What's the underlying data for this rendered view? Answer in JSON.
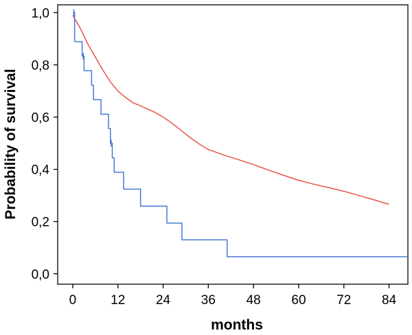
{
  "chart_data": {
    "type": "line",
    "title": "",
    "xlabel": "months",
    "ylabel": "Probability of survival",
    "xlim": [
      -4,
      89
    ],
    "ylim": [
      -0.04,
      1.03
    ],
    "xticks": [
      0,
      12,
      24,
      36,
      48,
      60,
      72,
      84
    ],
    "xtick_labels": [
      "0",
      "12",
      "24",
      "36",
      "48",
      "60",
      "72",
      "84"
    ],
    "yticks": [
      0.0,
      0.2,
      0.4,
      0.6,
      0.8,
      1.0
    ],
    "ytick_labels": [
      "0,0",
      "0,2",
      "0,4",
      "0,6",
      "0,8",
      "1,0"
    ],
    "grid": false,
    "series": [
      {
        "kind": "smooth",
        "color": "#e8524a",
        "points": [
          [
            0,
            0.99
          ],
          [
            2,
            0.94
          ],
          [
            4,
            0.88
          ],
          [
            6,
            0.83
          ],
          [
            8,
            0.78
          ],
          [
            10,
            0.735
          ],
          [
            12,
            0.7
          ],
          [
            14,
            0.675
          ],
          [
            16,
            0.655
          ],
          [
            18,
            0.643
          ],
          [
            20,
            0.63
          ],
          [
            22,
            0.617
          ],
          [
            24,
            0.6
          ],
          [
            26,
            0.58
          ],
          [
            28,
            0.558
          ],
          [
            30,
            0.535
          ],
          [
            32,
            0.513
          ],
          [
            34,
            0.493
          ],
          [
            36,
            0.476
          ],
          [
            40,
            0.455
          ],
          [
            44,
            0.437
          ],
          [
            48,
            0.418
          ],
          [
            52,
            0.397
          ],
          [
            56,
            0.377
          ],
          [
            60,
            0.358
          ],
          [
            64,
            0.343
          ],
          [
            68,
            0.33
          ],
          [
            72,
            0.316
          ],
          [
            76,
            0.3
          ],
          [
            80,
            0.283
          ],
          [
            84,
            0.266
          ]
        ]
      },
      {
        "kind": "step",
        "color": "#4a78d6",
        "points": [
          [
            0,
            1.0
          ],
          [
            0.5,
            0.889
          ],
          [
            2.5,
            0.833
          ],
          [
            3,
            0.778
          ],
          [
            5,
            0.722
          ],
          [
            5.5,
            0.667
          ],
          [
            7.5,
            0.611
          ],
          [
            9.5,
            0.556
          ],
          [
            10,
            0.5
          ],
          [
            10.5,
            0.444
          ],
          [
            11,
            0.389
          ],
          [
            13.5,
            0.324
          ],
          [
            18,
            0.259
          ],
          [
            25,
            0.194
          ],
          [
            29,
            0.13
          ],
          [
            41,
            0.065
          ],
          [
            99,
            0.065
          ]
        ],
        "ticks": [
          [
            0.3,
            1.0
          ],
          [
            2.8,
            0.833
          ],
          [
            10.2,
            0.5
          ]
        ]
      }
    ]
  }
}
